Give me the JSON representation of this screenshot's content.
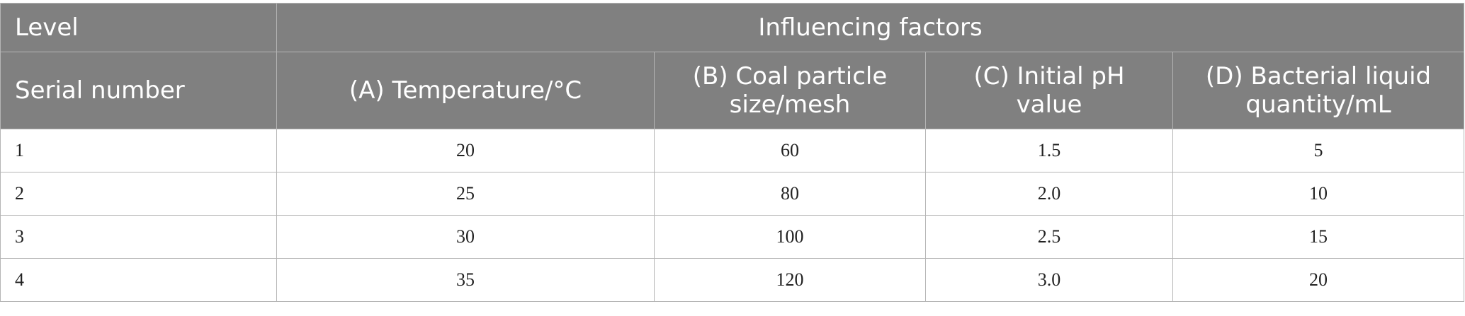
{
  "table": {
    "header": {
      "level": "Level",
      "group": "Influencing factors"
    },
    "columns": [
      "Serial number",
      "(A) Temperature/°C",
      "(B) Coal particle size/mesh",
      "(C) Initial pH value",
      "(D) Bacterial liquid quantity/mL"
    ],
    "rows": [
      [
        "1",
        "20",
        "60",
        "1.5",
        "5"
      ],
      [
        "2",
        "25",
        "80",
        "2.0",
        "10"
      ],
      [
        "3",
        "30",
        "100",
        "2.5",
        "15"
      ],
      [
        "4",
        "35",
        "120",
        "3.0",
        "20"
      ]
    ]
  }
}
